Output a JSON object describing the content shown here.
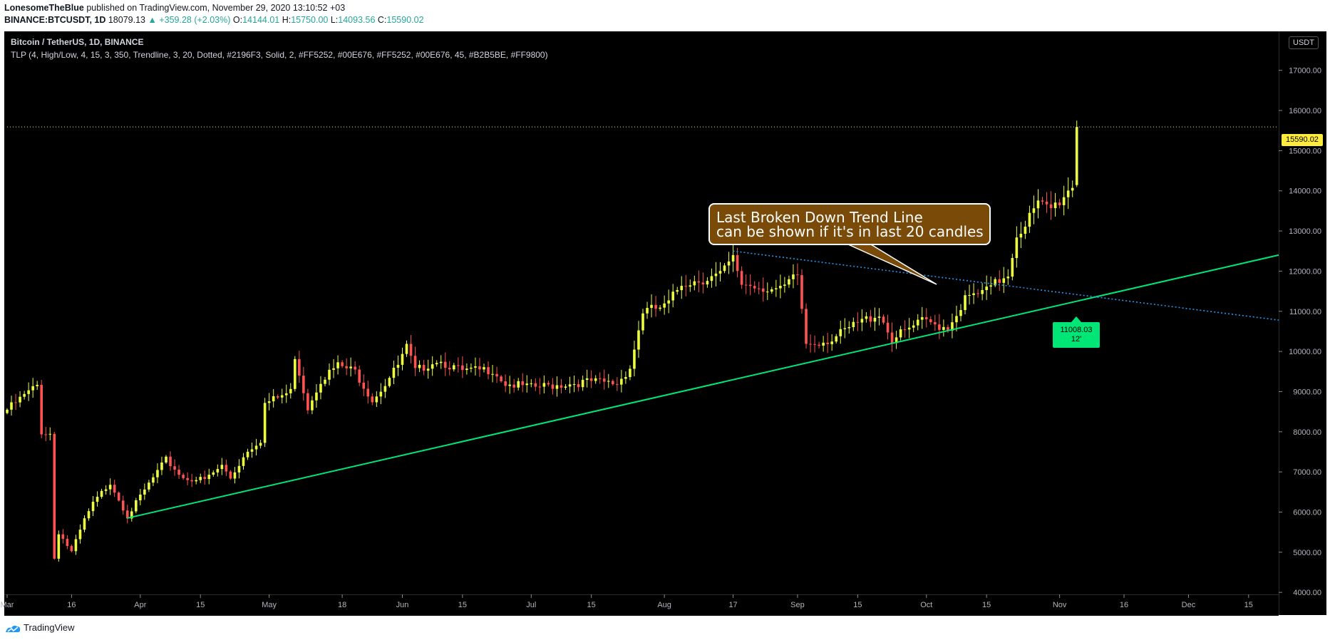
{
  "header": {
    "author": "LonesomeTheBlue",
    "published": "published on TradingView.com, November 29, 2020 13:10:52 +03",
    "symbol": "BINANCE:BTCUSDT, 1D",
    "last": "18079.13",
    "change": "▲ +359.28 (+2.03%)",
    "o_label": "O:",
    "o_value": "14144.01",
    "h_label": "H:",
    "h_value": "15750.00",
    "l_label": "L:",
    "l_value": "14093.56",
    "c_label": "C:",
    "c_value": "15590.02"
  },
  "legend": {
    "title": "Bitcoin / TetherUS, 1D, BINANCE",
    "indicator": "TLP (4, High/Low, 4, 15, 3, 350, Trendline, 3, 20, Dotted, #2196F3, Solid, 2, #FF5252, #00E676, #FF5252, #00E676, 45, #B2B5BE, #FF9800)"
  },
  "currency_button": "USDT",
  "annotation": {
    "line1": "Last Broken Down Trend Line",
    "line2": "can be shown if it's in last 20 candles"
  },
  "trendline_label": {
    "price": "11008.03",
    "count": "12'"
  },
  "price_tag": "15590.02",
  "footer": {
    "brand": "TradingView"
  },
  "colors": {
    "background": "#000000",
    "up_candle": "#eeff41",
    "down_candle": "#ff5252",
    "trendline_up": "#00e676",
    "trendline_down": "#2196f3",
    "callout": "#7a4a08",
    "price_tag": "#ffeb3b"
  },
  "chart_data": {
    "type": "candlestick",
    "ylim": [
      3950,
      17900
    ],
    "y_ticks": [
      "4000.00",
      "5000.00",
      "6000.00",
      "7000.00",
      "8000.00",
      "9000.00",
      "10000.00",
      "11000.00",
      "12000.00",
      "13000.00",
      "14000.00",
      "15000.00",
      "16000.00",
      "17000.00"
    ],
    "x_ticks": [
      "Mar",
      "16",
      "Apr",
      "15",
      "May",
      "18",
      "Jun",
      "15",
      "Jul",
      "15",
      "Aug",
      "17",
      "Sep",
      "15",
      "Oct",
      "15",
      "Nov",
      "16",
      "Dec",
      "15"
    ],
    "x_tick_dates": [
      "2020-03-01",
      "2020-03-16",
      "2020-04-01",
      "2020-04-15",
      "2020-05-01",
      "2020-05-18",
      "2020-06-01",
      "2020-06-15",
      "2020-07-01",
      "2020-07-15",
      "2020-08-01",
      "2020-08-17",
      "2020-09-01",
      "2020-09-15",
      "2020-10-01",
      "2020-10-15",
      "2020-11-01",
      "2020-11-16",
      "2020-12-01",
      "2020-12-15"
    ],
    "x_start": "2020-03-01",
    "x_end": "2020-12-22",
    "close_anchors": [
      [
        "2020-03-01",
        8550
      ],
      [
        "2020-03-05",
        8900
      ],
      [
        "2020-03-08",
        9150
      ],
      [
        "2020-03-09",
        8000
      ],
      [
        "2020-03-11",
        7950
      ],
      [
        "2020-03-12",
        4850
      ],
      [
        "2020-03-13",
        5500
      ],
      [
        "2020-03-16",
        5000
      ],
      [
        "2020-03-19",
        5800
      ],
      [
        "2020-03-21",
        6200
      ],
      [
        "2020-03-25",
        6750
      ],
      [
        "2020-03-29",
        5900
      ],
      [
        "2020-04-03",
        6700
      ],
      [
        "2020-04-07",
        7300
      ],
      [
        "2020-04-11",
        6850
      ],
      [
        "2020-04-16",
        6800
      ],
      [
        "2020-04-20",
        7150
      ],
      [
        "2020-04-22",
        6850
      ],
      [
        "2020-04-26",
        7550
      ],
      [
        "2020-04-29",
        7800
      ],
      [
        "2020-04-30",
        8700
      ],
      [
        "2020-05-06",
        9000
      ],
      [
        "2020-05-07",
        9900
      ],
      [
        "2020-05-10",
        8600
      ],
      [
        "2020-05-13",
        9300
      ],
      [
        "2020-05-17",
        9650
      ],
      [
        "2020-05-21",
        9500
      ],
      [
        "2020-05-25",
        8800
      ],
      [
        "2020-05-28",
        9200
      ],
      [
        "2020-05-31",
        9650
      ],
      [
        "2020-06-02",
        10100
      ],
      [
        "2020-06-04",
        9500
      ],
      [
        "2020-06-09",
        9800
      ],
      [
        "2020-06-15",
        9500
      ],
      [
        "2020-06-22",
        9550
      ],
      [
        "2020-06-25",
        9200
      ],
      [
        "2020-07-01",
        9100
      ],
      [
        "2020-07-10",
        9200
      ],
      [
        "2020-07-15",
        9250
      ],
      [
        "2020-07-21",
        9200
      ],
      [
        "2020-07-24",
        9600
      ],
      [
        "2020-07-27",
        11000
      ],
      [
        "2020-08-01",
        11100
      ],
      [
        "2020-08-02",
        11200
      ],
      [
        "2020-08-05",
        11700
      ],
      [
        "2020-08-10",
        11800
      ],
      [
        "2020-08-14",
        11900
      ],
      [
        "2020-08-17",
        12300
      ],
      [
        "2020-08-19",
        11700
      ],
      [
        "2020-08-24",
        11600
      ],
      [
        "2020-08-28",
        11500
      ],
      [
        "2020-09-01",
        11900
      ],
      [
        "2020-09-03",
        10200
      ],
      [
        "2020-09-09",
        10300
      ],
      [
        "2020-09-15",
        10700
      ],
      [
        "2020-09-20",
        10950
      ],
      [
        "2020-09-23",
        10300
      ],
      [
        "2020-09-30",
        10750
      ],
      [
        "2020-10-06",
        10600
      ],
      [
        "2020-10-10",
        11300
      ],
      [
        "2020-10-15",
        11500
      ],
      [
        "2020-10-20",
        11950
      ],
      [
        "2020-10-22",
        12900
      ],
      [
        "2020-10-27",
        13650
      ],
      [
        "2020-10-30",
        13550
      ],
      [
        "2020-11-01",
        13750
      ],
      [
        "2020-11-04",
        14150
      ],
      [
        "2020-11-05",
        15590
      ]
    ],
    "last_candle": {
      "date": "2020-11-05",
      "open": 14144.01,
      "high": 15750.0,
      "low": 14093.56,
      "close": 15590.02
    },
    "trendline_up": {
      "from": [
        "2020-03-29",
        5850
      ],
      "to": [
        "2020-12-22",
        12400
      ]
    },
    "trendline_down": {
      "from": [
        "2020-08-17",
        12500
      ],
      "to": [
        "2020-12-22",
        10780
      ]
    },
    "broken_trendline_label": {
      "date": "2020-11-06",
      "price": 11008.03
    },
    "last_price_line": 15590.02
  }
}
